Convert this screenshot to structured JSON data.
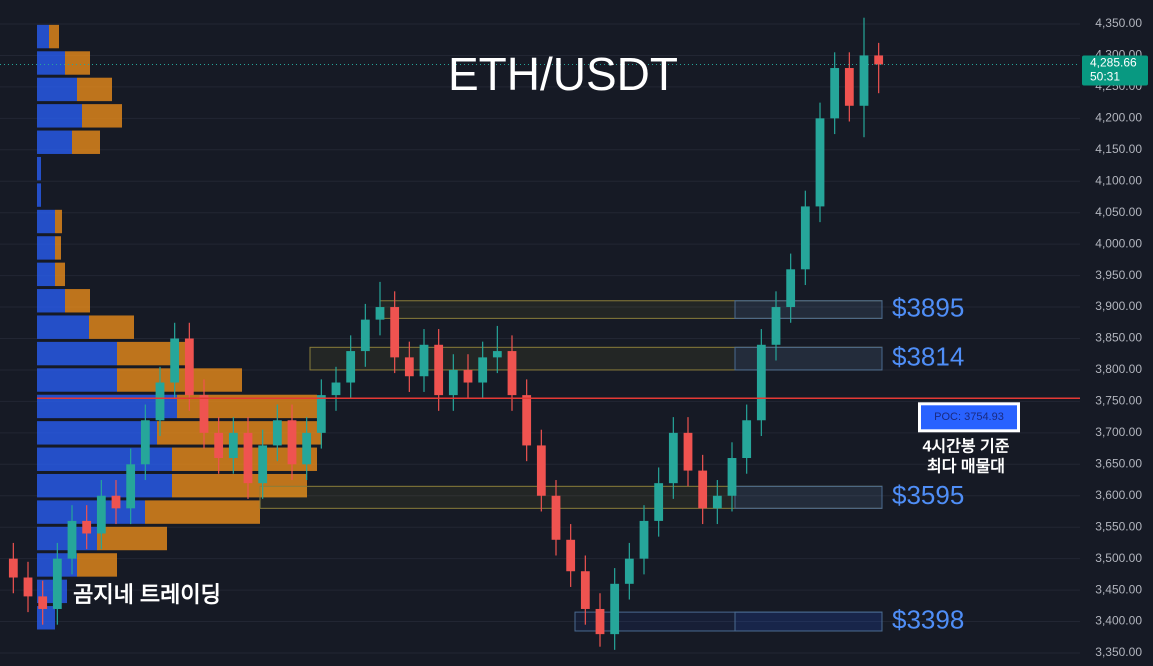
{
  "chart_data": {
    "type": "candlestick",
    "title": "ETH/USDT",
    "watermark": "곰지네 트레이딩",
    "up_color": "#26a69a",
    "down_color": "#ef5350",
    "grid": true,
    "ylim": [
      3340,
      4370
    ],
    "yticks": [
      {
        "value": 3350,
        "label": "3,350.00"
      },
      {
        "value": 3400,
        "label": "3,400.00"
      },
      {
        "value": 3450,
        "label": "3,450.00"
      },
      {
        "value": 3500,
        "label": "3,500.00"
      },
      {
        "value": 3550,
        "label": "3,550.00"
      },
      {
        "value": 3600,
        "label": "3,600.00"
      },
      {
        "value": 3650,
        "label": "3,650.00"
      },
      {
        "value": 3700,
        "label": "3,700.00"
      },
      {
        "value": 3750,
        "label": "3,750.00"
      },
      {
        "value": 3800,
        "label": "3,800.00"
      },
      {
        "value": 3850,
        "label": "3,850.00"
      },
      {
        "value": 3900,
        "label": "3,900.00"
      },
      {
        "value": 3950,
        "label": "3,950.00"
      },
      {
        "value": 4000,
        "label": "4,000.00"
      },
      {
        "value": 4050,
        "label": "4,050.00"
      },
      {
        "value": 4100,
        "label": "4,100.00"
      },
      {
        "value": 4150,
        "label": "4,150.00"
      },
      {
        "value": 4200,
        "label": "4,200.00"
      },
      {
        "value": 4250,
        "label": "4,250.00"
      },
      {
        "value": 4300,
        "label": "4,300.00"
      },
      {
        "value": 4350,
        "label": "4,350.00"
      }
    ],
    "open": [
      3500,
      3470,
      3440,
      3420,
      3500,
      3560,
      3540,
      3600,
      3580,
      3650,
      3720,
      3780,
      3850,
      3760,
      3700,
      3660,
      3700,
      3620,
      3680,
      3720,
      3650,
      3700,
      3760,
      3780,
      3830,
      3880,
      3900,
      3820,
      3790,
      3840,
      3760,
      3800,
      3780,
      3820,
      3830,
      3760,
      3680,
      3600,
      3530,
      3480,
      3420,
      3380,
      3460,
      3500,
      3560,
      3620,
      3700,
      3640,
      3580,
      3600,
      3660,
      3720,
      3840,
      3900,
      3960,
      4060,
      4200,
      4280,
      4220,
      4300
    ],
    "high": [
      3525,
      3495,
      3465,
      3525,
      3585,
      3585,
      3625,
      3625,
      3675,
      3745,
      3805,
      3875,
      3875,
      3785,
      3725,
      3725,
      3725,
      3705,
      3745,
      3745,
      3725,
      3785,
      3805,
      3855,
      3905,
      3940,
      3925,
      3845,
      3865,
      3865,
      3825,
      3825,
      3845,
      3870,
      3855,
      3785,
      3705,
      3625,
      3555,
      3505,
      3445,
      3485,
      3525,
      3585,
      3645,
      3725,
      3725,
      3665,
      3625,
      3685,
      3745,
      3865,
      3925,
      3985,
      4085,
      4225,
      4305,
      4305,
      4360,
      4320
    ],
    "low": [
      3445,
      3415,
      3395,
      3395,
      3475,
      3515,
      3515,
      3555,
      3555,
      3625,
      3695,
      3755,
      3735,
      3675,
      3635,
      3635,
      3595,
      3595,
      3655,
      3625,
      3625,
      3675,
      3735,
      3755,
      3805,
      3855,
      3795,
      3765,
      3765,
      3735,
      3735,
      3755,
      3755,
      3795,
      3735,
      3655,
      3575,
      3505,
      3455,
      3395,
      3360,
      3355,
      3435,
      3475,
      3535,
      3595,
      3615,
      3555,
      3555,
      3575,
      3635,
      3695,
      3815,
      3875,
      3935,
      4035,
      4175,
      4195,
      4170,
      4240
    ],
    "close": [
      3470,
      3440,
      3420,
      3500,
      3560,
      3540,
      3600,
      3580,
      3650,
      3720,
      3780,
      3850,
      3760,
      3700,
      3660,
      3700,
      3620,
      3680,
      3720,
      3650,
      3700,
      3760,
      3780,
      3830,
      3880,
      3900,
      3820,
      3790,
      3840,
      3760,
      3800,
      3780,
      3820,
      3830,
      3760,
      3680,
      3600,
      3530,
      3480,
      3420,
      3380,
      3460,
      3500,
      3560,
      3620,
      3700,
      3640,
      3580,
      3600,
      3660,
      3720,
      3840,
      3900,
      3960,
      4060,
      4200,
      4280,
      4220,
      4300,
      4285.66
    ],
    "volume_profile": {
      "levels": [
        4330,
        4288,
        4246,
        4204,
        4162,
        4120,
        4078,
        4036,
        3994,
        3952,
        3910,
        3868,
        3826,
        3784,
        3742,
        3700,
        3658,
        3616,
        3574,
        3532,
        3490,
        3448,
        3406
      ],
      "buy": [
        12,
        28,
        40,
        45,
        35,
        4,
        4,
        18,
        18,
        18,
        28,
        52,
        80,
        80,
        140,
        120,
        135,
        135,
        108,
        60,
        40,
        30,
        18
      ],
      "sell": [
        10,
        25,
        35,
        40,
        28,
        0,
        0,
        7,
        6,
        10,
        25,
        45,
        75,
        125,
        140,
        165,
        145,
        135,
        115,
        70,
        40,
        0,
        0
      ],
      "buy_color": "#2962ff",
      "sell_color": "#f7931a"
    },
    "zones": [
      {
        "label": "$3895",
        "low": 3882,
        "high": 3910
      },
      {
        "label": "$3814",
        "low": 3800,
        "high": 3836
      },
      {
        "label": "$3595",
        "low": 3580,
        "high": 3615
      },
      {
        "label": "$3398",
        "low": 3385,
        "high": 3415
      }
    ],
    "poc": {
      "value": 3754.93,
      "label": "POC: 3754.93"
    },
    "poc_note": [
      "4시간봉 기준",
      "최다 매물대"
    ],
    "last_price": {
      "value": 4285.66,
      "label": "4,285.66"
    },
    "countdown": "50:31"
  }
}
